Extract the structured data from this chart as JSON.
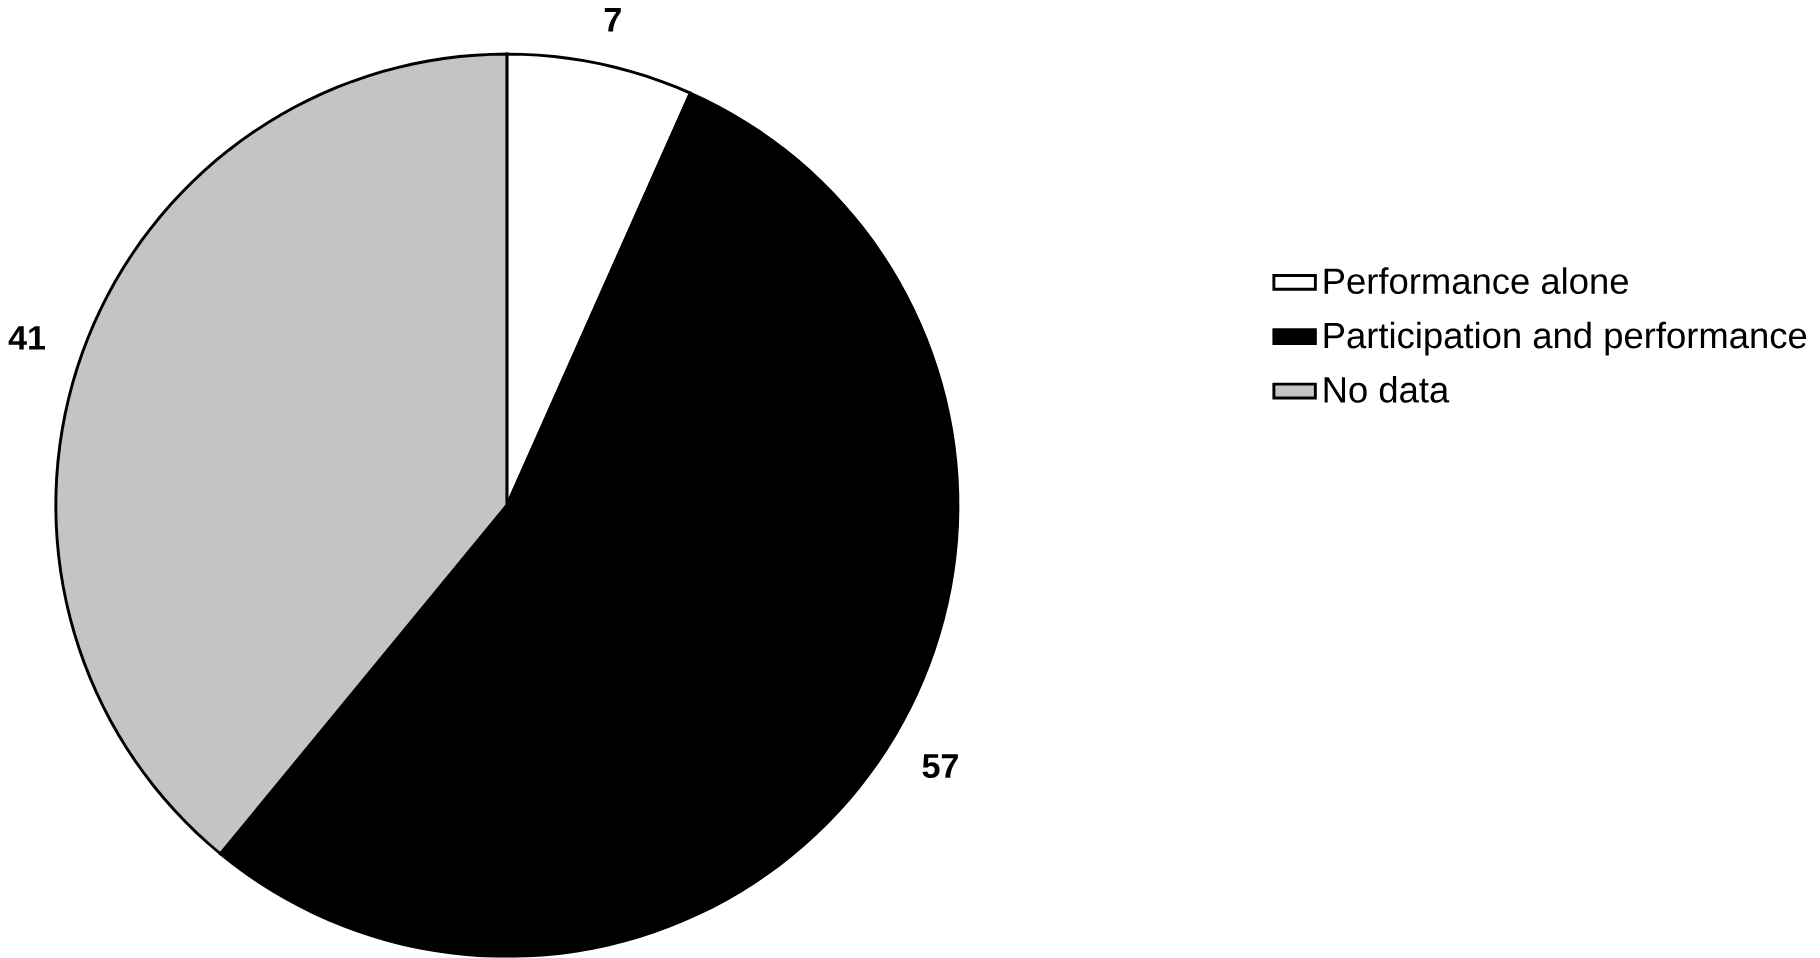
{
  "chart_data": {
    "type": "pie",
    "categories": [
      "Performance alone",
      "Participation and performance",
      "No data"
    ],
    "values": [
      7,
      57,
      41
    ],
    "colors": [
      "#ffffff",
      "#000000",
      "#c4c4c4"
    ],
    "data_labels": true,
    "legend": "right"
  }
}
